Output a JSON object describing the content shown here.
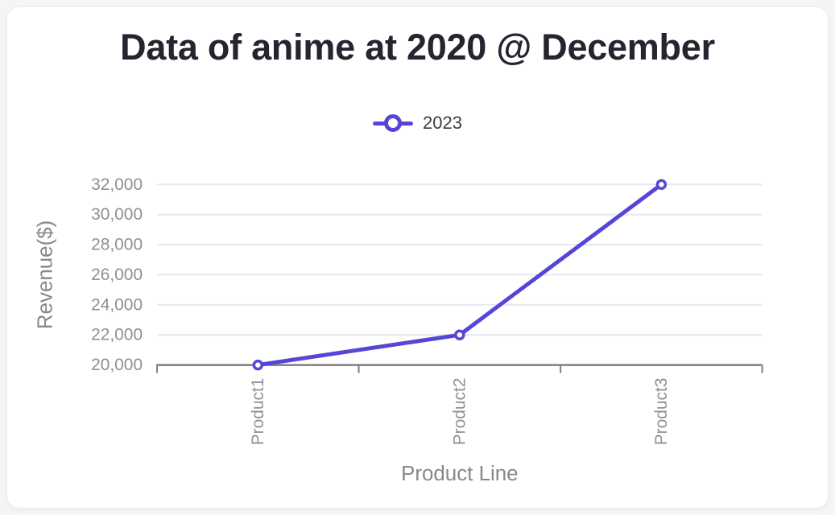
{
  "page": {
    "background": "#f4f5f7"
  },
  "card": {
    "background": "#ffffff",
    "border": "#eceef2"
  },
  "chart_data": {
    "type": "line",
    "title": "Data of anime at 2020 @ December",
    "categories": [
      "Product1",
      "Product2",
      "Product3"
    ],
    "series": [
      {
        "name": "2023",
        "values": [
          20000,
          22000,
          32000
        ],
        "color": "#5546d8",
        "marker": "open-circle"
      }
    ],
    "xlabel": "Product Line",
    "ylabel": "Revenue($)",
    "ylim": [
      20000,
      32000
    ],
    "yticks": [
      20000,
      22000,
      24000,
      26000,
      28000,
      30000,
      32000
    ],
    "ytick_labels": [
      "20,000",
      "22,000",
      "24,000",
      "26,000",
      "28,000",
      "30,000",
      "32,000"
    ],
    "grid": "horizontal-only",
    "legend_position": "top-center",
    "x_tick_label_rotation": -90
  },
  "colors": {
    "series": "#5546d8",
    "grid_line": "#e6e8f2",
    "axis_line": "#7d7d85",
    "tick_label": "#8f8f96",
    "axis_title": "#87878e",
    "title_text": "#26242e",
    "legend_text": "#3e3d44",
    "marker_fill": "#ffffff"
  }
}
